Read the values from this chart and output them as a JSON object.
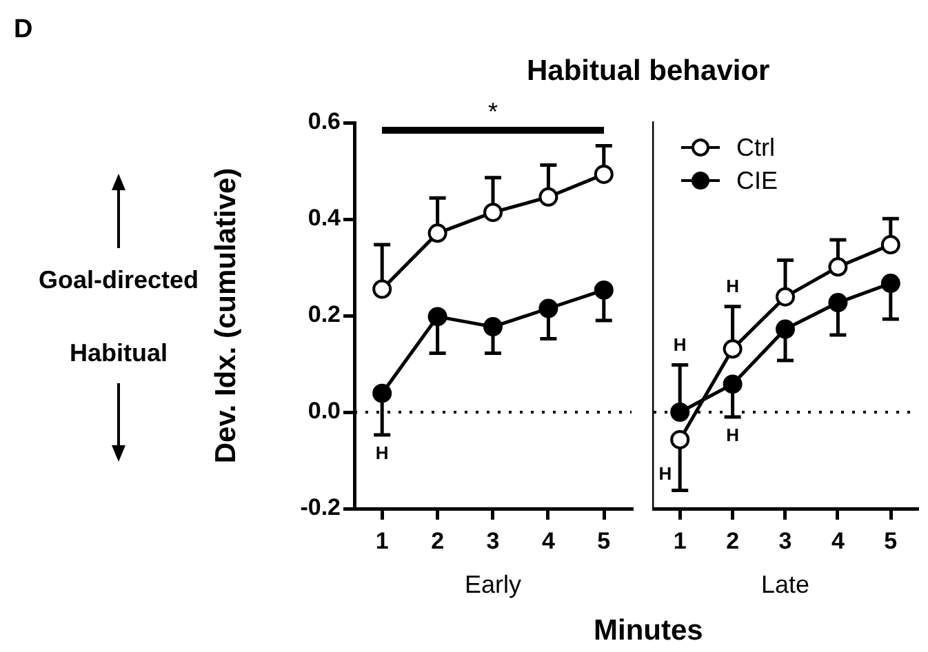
{
  "chart_data": [
    {
      "type": "line",
      "title": "Habitual behavior",
      "xlabel": "Early",
      "ylabel": "Dev. Idx. (cumulative)",
      "categories": [
        "1",
        "2",
        "3",
        "4",
        "5"
      ],
      "ylim": [
        -0.2,
        0.6
      ],
      "yticks": [
        {
          "value": -0.2,
          "label": "-0.2"
        },
        {
          "value": 0,
          "label": "0.0"
        },
        {
          "value": 0.2,
          "label": "0.2"
        },
        {
          "value": 0.4,
          "label": "0.4"
        },
        {
          "value": 0.6,
          "label": "0.6"
        }
      ],
      "grid": false,
      "legend": false,
      "marker": "circle",
      "series": [
        {
          "color": "#ffffff",
          "values": [
            0.255,
            0.371,
            0.414,
            0.446,
            0.493
          ],
          "errors": [
            [
              0.255,
              0.347
            ],
            [
              0.371,
              0.444
            ],
            [
              0.414,
              0.486
            ],
            [
              0.446,
              0.512
            ],
            [
              0.493,
              0.552
            ]
          ]
        },
        {
          "color": "#000000",
          "values": [
            0.039,
            0.198,
            0.177,
            0.215,
            0.253
          ],
          "errors": [
            [
              -0.047,
              0.039
            ],
            [
              0.122,
              0.198
            ],
            [
              0.122,
              0.177
            ],
            [
              0.152,
              0.215
            ],
            [
              0.19,
              0.253
            ]
          ]
        }
      ],
      "ref_lines": [
        {
          "axis": "y",
          "value": 0,
          "line_style": "dotted"
        }
      ],
      "annotations": [
        "D",
        "*",
        "Goal-directed",
        "Habitual",
        "Minutes",
        {
          "text": "H",
          "x": "1",
          "y": 0.039
        }
      ]
    },
    {
      "type": "line",
      "xlabel": "Late",
      "categories": [
        "1",
        "2",
        "3",
        "4",
        "5"
      ],
      "ylim": [
        -0.2,
        0.6
      ],
      "tick_labels": "x",
      "grid": false,
      "legend": "top left",
      "marker": "circle",
      "series": [
        {
          "name": "Ctrl",
          "color": "#ffffff",
          "values": [
            -0.057,
            0.131,
            0.239,
            0.301,
            0.347
          ],
          "errors": [
            [
              -0.162,
              -0.057
            ],
            [
              0.131,
              0.219
            ],
            [
              0.239,
              0.315
            ],
            [
              0.301,
              0.357
            ],
            [
              0.347,
              0.401
            ]
          ]
        },
        {
          "name": "CIE",
          "color": "#000000",
          "values": [
            0,
            0.058,
            0.172,
            0.227,
            0.267
          ],
          "errors": [
            [
              0,
              0.098
            ],
            [
              -0.01,
              0.058
            ],
            [
              0.107,
              0.172
            ],
            [
              0.16,
              0.227
            ],
            [
              0.193,
              0.267
            ]
          ]
        }
      ],
      "ref_lines": [
        {
          "axis": "y",
          "value": 0,
          "line_style": "dotted"
        }
      ],
      "annotations": [
        {
          "text": "H",
          "x": "1",
          "y": -0.13
        },
        {
          "text": "H",
          "x": "1",
          "y": 0.098
        },
        {
          "text": "H",
          "x": "2",
          "y": 0.131
        },
        {
          "text": "H",
          "x": "2",
          "y": 0.058
        }
      ]
    }
  ]
}
